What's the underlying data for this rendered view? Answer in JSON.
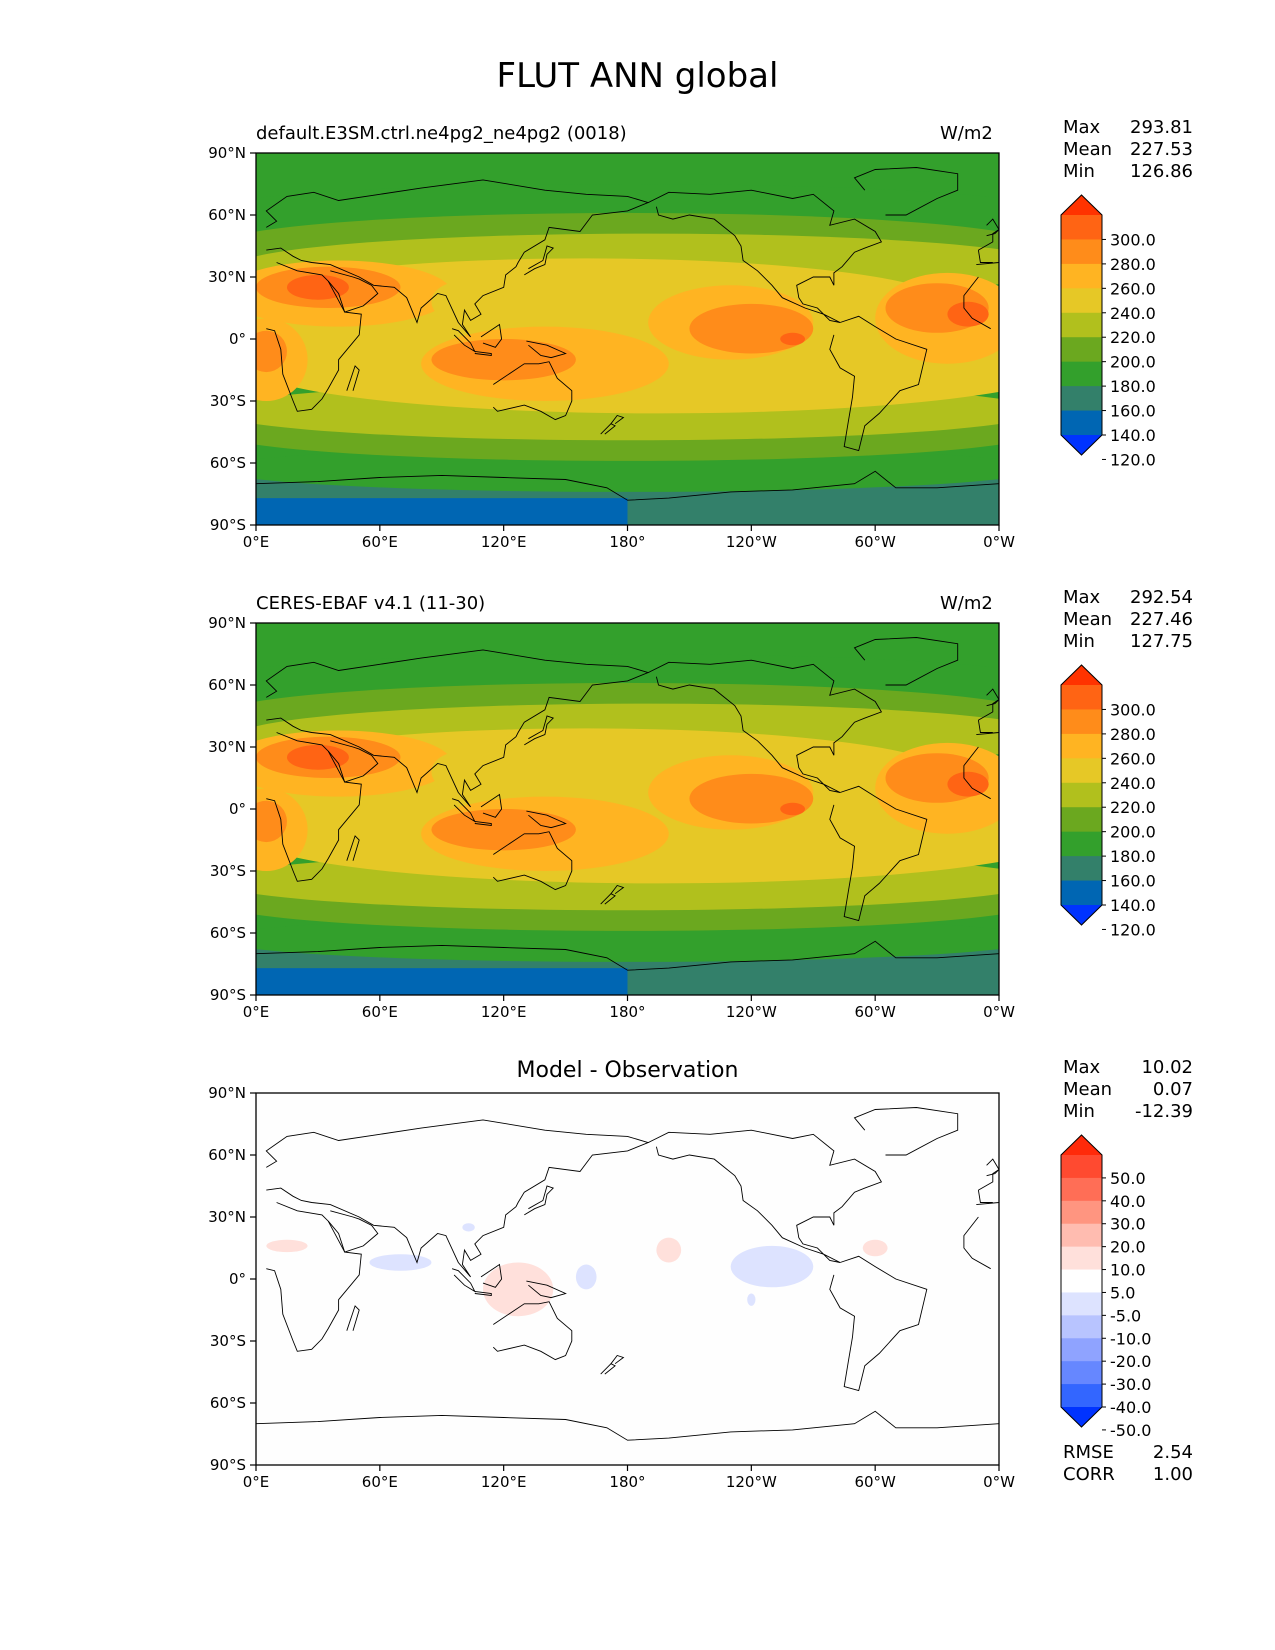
{
  "title": "FLUT ANN global",
  "lat_ticks": [
    "90°N",
    "60°N",
    "30°N",
    "0°",
    "30°S",
    "60°S",
    "90°S"
  ],
  "lon_ticks": [
    "0°E",
    "60°E",
    "120°E",
    "180°",
    "120°W",
    "60°W",
    "0°W"
  ],
  "colors": {
    "abs": [
      "#0033ff",
      "#0066b3",
      "#33806a",
      "#33a02c",
      "#6ba81f",
      "#b1c01d",
      "#e6c826",
      "#ffb422",
      "#ff8c1a",
      "#ff6414",
      "#ff3300"
    ],
    "diff": [
      "#0033ff",
      "#3366ff",
      "#6687ff",
      "#8fa3ff",
      "#b8c4ff",
      "#dde3ff",
      "#ffffff",
      "#ffe0db",
      "#ffbcb0",
      "#ff9580",
      "#ff6e56",
      "#ff4a30",
      "#ff2a0a"
    ]
  },
  "panels": [
    {
      "id": "model",
      "left_title": "default.E3SM.ctrl.ne4pg2_ne4pg2 (0018)",
      "center_title": "",
      "units": "W/m2",
      "stats": [
        [
          "Max",
          "293.81"
        ],
        [
          "Mean",
          "227.53"
        ],
        [
          "Min",
          "126.86"
        ]
      ],
      "colorbar_type": "abs",
      "colorbar_labels": [
        "300.0",
        "280.0",
        "260.0",
        "240.0",
        "220.0",
        "200.0",
        "180.0",
        "160.0",
        "140.0",
        "120.0"
      ]
    },
    {
      "id": "obs",
      "left_title": "CERES-EBAF v4.1 (11-30)",
      "center_title": "",
      "units": "W/m2",
      "stats": [
        [
          "Max",
          "292.54"
        ],
        [
          "Mean",
          "227.46"
        ],
        [
          "Min",
          "127.75"
        ]
      ],
      "colorbar_type": "abs",
      "colorbar_labels": [
        "300.0",
        "280.0",
        "260.0",
        "240.0",
        "220.0",
        "200.0",
        "180.0",
        "160.0",
        "140.0",
        "120.0"
      ]
    },
    {
      "id": "diff",
      "left_title": "",
      "center_title": "Model - Observation",
      "units": "",
      "stats": [
        [
          "Max",
          "10.02"
        ],
        [
          "Mean",
          "0.07"
        ],
        [
          "Min",
          "-12.39"
        ]
      ],
      "colorbar_type": "diff",
      "colorbar_labels": [
        "50.0",
        "40.0",
        "30.0",
        "20.0",
        "10.0",
        "5.0",
        "-5.0",
        "-10.0",
        "-20.0",
        "-30.0",
        "-40.0",
        "-50.0"
      ],
      "extra_stats": [
        [
          "RMSE",
          "2.54"
        ],
        [
          "CORR",
          "1.00"
        ]
      ]
    }
  ]
}
